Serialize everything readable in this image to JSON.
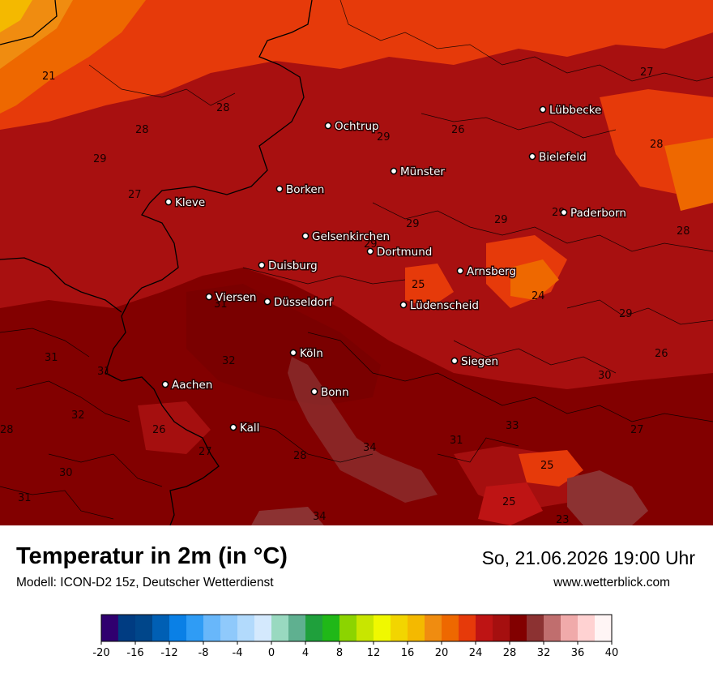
{
  "map": {
    "cities": [
      {
        "name": "Lübbecke"
      },
      {
        "name": "Ochtrup"
      },
      {
        "name": "Bielefeld"
      },
      {
        "name": "Münster"
      },
      {
        "name": "Borken"
      },
      {
        "name": "Kleve"
      },
      {
        "name": "Paderborn"
      },
      {
        "name": "Gelsenkirchen"
      },
      {
        "name": "Dortmund"
      },
      {
        "name": "Duisburg"
      },
      {
        "name": "Arnsberg"
      },
      {
        "name": "Viersen"
      },
      {
        "name": "Düsseldorf"
      },
      {
        "name": "Lüdenscheid"
      },
      {
        "name": "Köln"
      },
      {
        "name": "Siegen"
      },
      {
        "name": "Aachen"
      },
      {
        "name": "Bonn"
      },
      {
        "name": "Kall"
      }
    ],
    "values": [
      "21",
      "27",
      "28",
      "28",
      "26",
      "29",
      "28",
      "29",
      "27",
      "29",
      "29",
      "29",
      "29",
      "28",
      "25",
      "24",
      "31",
      "29",
      "32",
      "31",
      "26",
      "31",
      "30",
      "32",
      "26",
      "33",
      "34",
      "27",
      "28",
      "27",
      "30",
      "25",
      "31",
      "25",
      "34",
      "23",
      "28",
      "31"
    ]
  },
  "header": {
    "title": "Temperatur in 2m (in °C)",
    "subtitle": "Modell: ICON-D2 15z, Deutscher Wetterdienst",
    "datetime": "So, 21.06.2026 19:00 Uhr",
    "website": "www.wetterblick.com"
  },
  "scale": {
    "min": -20,
    "max": 40,
    "step": 2,
    "tick_labels": [
      "-20",
      "-16",
      "-12",
      "-8",
      "-4",
      "0",
      "4",
      "8",
      "12",
      "16",
      "20",
      "24",
      "28",
      "32",
      "36",
      "40"
    ],
    "colors": [
      "#30006f",
      "#003c82",
      "#00468a",
      "#005fb4",
      "#0a80e6",
      "#2f9cf5",
      "#68b7fa",
      "#8fc9fb",
      "#b2dafc",
      "#d4e9fd",
      "#99d9c0",
      "#5fb090",
      "#1fa03c",
      "#20b818",
      "#8cd400",
      "#c8e600",
      "#f0f800",
      "#f2d500",
      "#f4b900",
      "#f08c10",
      "#ee6800",
      "#e63a0a",
      "#be1414",
      "#a50f0f",
      "#820000",
      "#8c3232",
      "#c06e6e",
      "#f0aaaa",
      "#ffd2d2",
      "#fff5f5"
    ]
  }
}
